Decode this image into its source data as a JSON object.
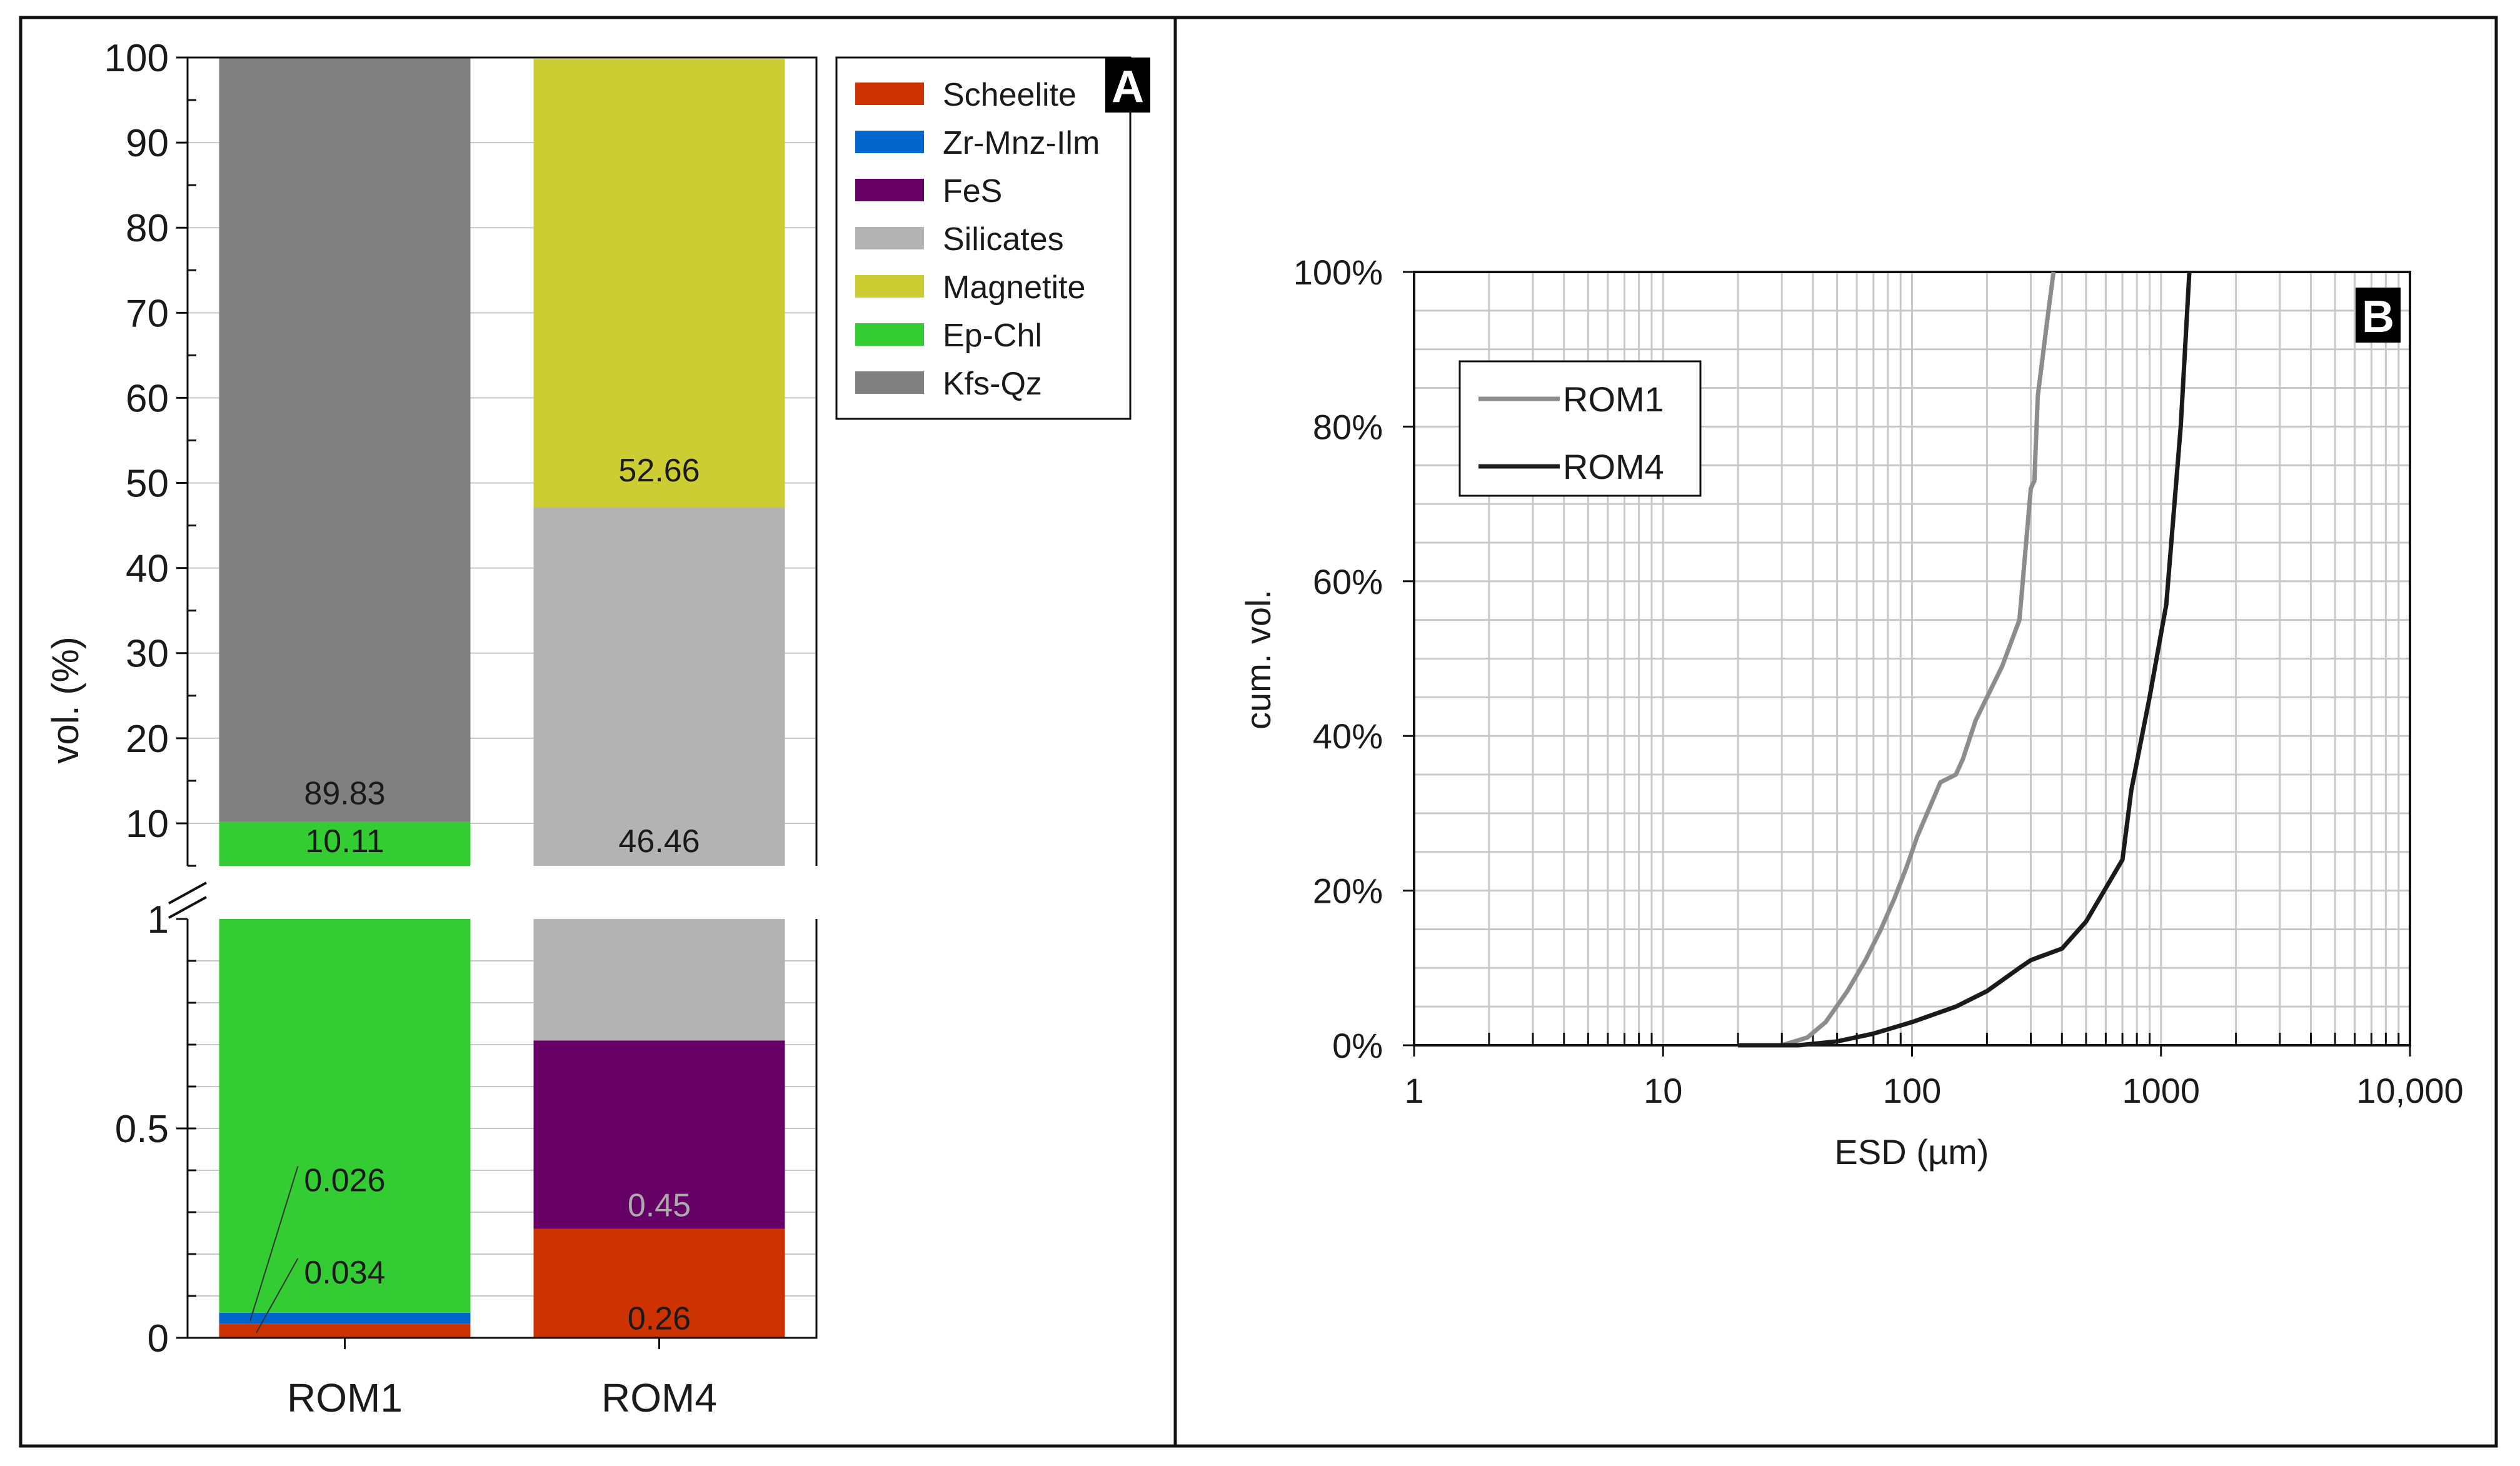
{
  "chart_data": [
    {
      "panel": "A",
      "type": "bar",
      "stacked": true,
      "broken_axis": true,
      "categories": [
        "ROM1",
        "ROM4"
      ],
      "ylabel": "vol. (%)",
      "ylim_upper": [
        5,
        100
      ],
      "ylim_lower": [
        0,
        1
      ],
      "yticks_upper": [
        "100",
        "90",
        "80",
        "70",
        "60",
        "50",
        "40",
        "30",
        "20",
        "10"
      ],
      "yticks_lower": [
        "1",
        "0.5",
        "0"
      ],
      "series": [
        {
          "name": "Scheelite",
          "color": "#cc3300",
          "values": [
            0.034,
            0.26
          ]
        },
        {
          "name": "Zr-Mnz-Ilm",
          "color": "#0066cc",
          "values": [
            0.026,
            0
          ]
        },
        {
          "name": "FeS",
          "color": "#660066",
          "values": [
            0,
            0.45
          ]
        },
        {
          "name": "Silicates",
          "color": "#b3b3b3",
          "values": [
            0,
            46.46
          ]
        },
        {
          "name": "Magnetite",
          "color": "#cccc33",
          "values": [
            0,
            52.66
          ]
        },
        {
          "name": "Ep-Chl",
          "color": "#33cc33",
          "values": [
            10.11,
            0
          ]
        },
        {
          "name": "Kfs-Qz",
          "color": "#808080",
          "values": [
            89.83,
            0
          ]
        }
      ],
      "data_labels": [
        {
          "category": "ROM1",
          "series": "Kfs-Qz",
          "text": "89.83"
        },
        {
          "category": "ROM1",
          "series": "Ep-Chl",
          "text": "10.11"
        },
        {
          "category": "ROM1",
          "series": "Zr-Mnz-Ilm",
          "text": "0.026"
        },
        {
          "category": "ROM1",
          "series": "Scheelite",
          "text": "0.034"
        },
        {
          "category": "ROM4",
          "series": "Magnetite",
          "text": "52.66"
        },
        {
          "category": "ROM4",
          "series": "Silicates",
          "text": "46.46"
        },
        {
          "category": "ROM4",
          "series": "FeS",
          "text": "0.45"
        },
        {
          "category": "ROM4",
          "series": "Scheelite",
          "text": "0.26"
        }
      ],
      "legend_position": "top-right",
      "panel_label": "A"
    },
    {
      "panel": "B",
      "type": "line",
      "xscale": "log",
      "xlabel": "ESD (µm)",
      "ylabel": "cum. vol.",
      "xlim": [
        1,
        10000
      ],
      "ylim": [
        0,
        100
      ],
      "xtick_labels": [
        "1",
        "10",
        "100",
        "1000",
        "10,000"
      ],
      "ytick_labels": [
        "0%",
        "20%",
        "40%",
        "60%",
        "80%",
        "100%"
      ],
      "grid": true,
      "legend_position": "top-left",
      "panel_label": "B",
      "series": [
        {
          "name": "ROM1",
          "color": "#8c8c8c",
          "x": [
            20,
            30,
            38,
            45,
            55,
            65,
            75,
            85,
            95,
            105,
            115,
            130,
            150,
            160,
            180,
            200,
            230,
            270,
            300,
            310,
            320,
            350,
            370
          ],
          "y": [
            0,
            0,
            1,
            3,
            7,
            11,
            15,
            19,
            23,
            27,
            30,
            34,
            35,
            37,
            42,
            45,
            49,
            55,
            72,
            73,
            84,
            94,
            100
          ]
        },
        {
          "name": "ROM4",
          "color": "#1a1a1a",
          "x": [
            20,
            35,
            50,
            70,
            100,
            150,
            200,
            270,
            300,
            330,
            400,
            500,
            700,
            760,
            900,
            1050,
            1200,
            1300
          ],
          "y": [
            0,
            0,
            0.5,
            1.5,
            3,
            5,
            7,
            10,
            11,
            11.5,
            12.5,
            16,
            24,
            33,
            45,
            57,
            80,
            100
          ]
        }
      ]
    }
  ]
}
